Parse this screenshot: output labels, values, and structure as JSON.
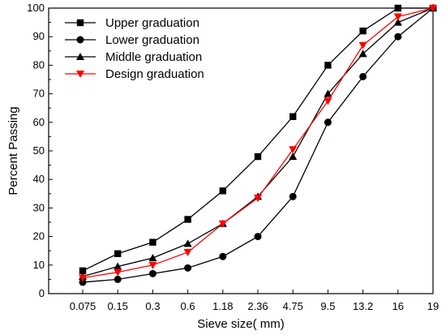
{
  "chart_data": {
    "type": "line",
    "title": "",
    "xlabel": "Sieve size(  mm)",
    "ylabel": "Percent Passing",
    "categories": [
      "0.075",
      "0.15",
      "0.3",
      "0.6",
      "1.18",
      "2.36",
      "4.75",
      "9.5",
      "13.2",
      "16",
      "19"
    ],
    "ylim": [
      0,
      100
    ],
    "yticks": [
      0,
      10,
      20,
      30,
      40,
      50,
      60,
      70,
      80,
      90,
      100
    ],
    "grid": false,
    "legend_position": "top-left",
    "series": [
      {
        "name": "Upper graduation",
        "marker": "square",
        "color": "#000000",
        "values": [
          8,
          14,
          18,
          26,
          36,
          48,
          62,
          80,
          92,
          100,
          100
        ]
      },
      {
        "name": "Lower graduation",
        "marker": "circle",
        "color": "#000000",
        "values": [
          4,
          5,
          7,
          9,
          13,
          20,
          34,
          60,
          76,
          90,
          100
        ]
      },
      {
        "name": "Middle graduation",
        "marker": "triangle-up",
        "color": "#000000",
        "values": [
          6,
          9.5,
          12.5,
          17.5,
          24.5,
          34,
          48,
          70,
          84,
          95,
          100
        ]
      },
      {
        "name": "Design graduation",
        "marker": "triangle-down",
        "color": "#ff0000",
        "values": [
          5.5,
          7.5,
          10,
          14.5,
          24.5,
          33.5,
          50.5,
          67.5,
          87,
          97,
          100
        ]
      }
    ]
  }
}
